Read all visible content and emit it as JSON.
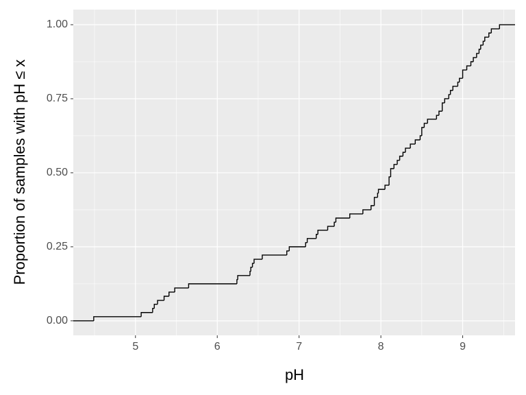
{
  "chart_data": {
    "type": "step",
    "xlabel": "pH",
    "ylabel": "Proportion of samples with pH ≤ x",
    "x": [
      4.24,
      4.49,
      5.07,
      5.21,
      5.23,
      5.27,
      5.35,
      5.41,
      5.48,
      5.65,
      6.24,
      6.25,
      6.4,
      6.41,
      6.43,
      6.45,
      6.55,
      6.85,
      6.88,
      7.08,
      7.1,
      7.21,
      7.23,
      7.35,
      7.43,
      7.45,
      7.62,
      7.78,
      7.88,
      7.92,
      7.96,
      7.97,
      8.05,
      8.1,
      8.12,
      8.16,
      8.2,
      8.23,
      8.27,
      8.3,
      8.36,
      8.42,
      8.48,
      8.5,
      8.53,
      8.57,
      8.68,
      8.71,
      8.75,
      8.78,
      8.83,
      8.85,
      8.88,
      8.94,
      8.96,
      9.0,
      9.05,
      9.1,
      9.13,
      9.17,
      9.2,
      9.22,
      9.25,
      9.27,
      9.32,
      9.35,
      9.45,
      9.64
    ],
    "values": [
      0,
      0.014,
      0.028,
      0.042,
      0.056,
      0.069,
      0.083,
      0.097,
      0.111,
      0.125,
      0.139,
      0.153,
      0.167,
      0.181,
      0.194,
      0.208,
      0.222,
      0.236,
      0.25,
      0.264,
      0.278,
      0.292,
      0.306,
      0.319,
      0.333,
      0.347,
      0.361,
      0.375,
      0.389,
      0.417,
      0.431,
      0.444,
      0.458,
      0.486,
      0.514,
      0.528,
      0.542,
      0.556,
      0.569,
      0.583,
      0.597,
      0.611,
      0.625,
      0.653,
      0.667,
      0.681,
      0.694,
      0.708,
      0.736,
      0.75,
      0.764,
      0.778,
      0.792,
      0.806,
      0.819,
      0.847,
      0.861,
      0.875,
      0.889,
      0.903,
      0.917,
      0.931,
      0.944,
      0.958,
      0.972,
      0.986,
      1.0,
      1.0
    ],
    "color": "#000000",
    "xlim": [
      4.24,
      9.64
    ],
    "xticks": [
      5,
      6,
      7,
      8,
      9
    ],
    "ylim": [
      -0.049,
      1.051
    ],
    "yticks": [
      {
        "value": 0,
        "label": "0.00"
      },
      {
        "value": 0.25,
        "label": "0.25"
      },
      {
        "value": 0.5,
        "label": "0.50"
      },
      {
        "value": 0.75,
        "label": "0.75"
      },
      {
        "value": 1,
        "label": "1.00"
      }
    ],
    "grid": true
  }
}
